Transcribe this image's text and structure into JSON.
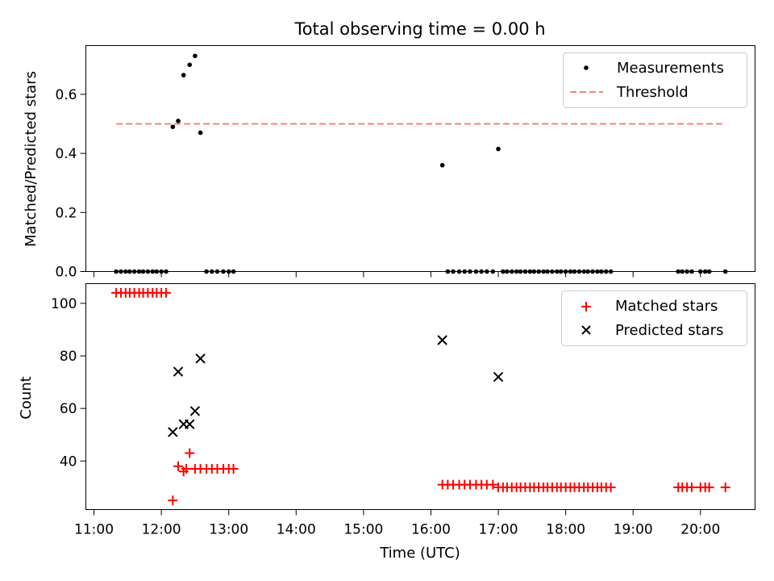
{
  "figure": {
    "title": "Total observing time = 0.00 h",
    "xlabel": "Time (UTC)",
    "x_ticks": [
      "11:00",
      "12:00",
      "13:00",
      "14:00",
      "15:00",
      "16:00",
      "17:00",
      "18:00",
      "19:00",
      "20:00"
    ]
  },
  "chart_data": [
    {
      "type": "scatter",
      "panel": "top",
      "ylabel": "Matched/Predicted stars",
      "y_ticks": [
        "0.0",
        "0.2",
        "0.4",
        "0.6"
      ],
      "xlim_hours": [
        10.88,
        20.81
      ],
      "ylim": [
        0,
        0.765
      ],
      "legend_position": "top-right",
      "series": [
        {
          "name": "Measurements",
          "kind": "points",
          "color": "#000000",
          "x_hours": [
            11.33,
            11.4,
            11.47,
            11.53,
            11.6,
            11.67,
            11.73,
            11.8,
            11.87,
            11.93,
            12.0,
            12.07,
            12.17,
            12.25,
            12.33,
            12.42,
            12.5,
            12.58,
            12.67,
            12.75,
            12.83,
            12.92,
            13.0,
            13.07,
            16.17,
            16.25,
            16.33,
            16.42,
            16.5,
            16.58,
            16.67,
            16.75,
            16.83,
            16.92,
            17.0,
            17.07,
            17.13,
            17.2,
            17.27,
            17.33,
            17.4,
            17.47,
            17.53,
            17.6,
            17.67,
            17.73,
            17.8,
            17.87,
            17.93,
            18.0,
            18.07,
            18.13,
            18.2,
            18.27,
            18.33,
            18.4,
            18.47,
            18.53,
            18.6,
            18.67,
            19.67,
            19.73,
            19.8,
            19.87,
            20.0,
            20.07,
            20.13,
            20.37
          ],
          "y": [
            0,
            0,
            0,
            0,
            0,
            0,
            0,
            0,
            0,
            0,
            0,
            0,
            0.49,
            0.51,
            0.665,
            0.7,
            0.73,
            0.47,
            0,
            0,
            0,
            0,
            0,
            0,
            0.36,
            0,
            0,
            0,
            0,
            0,
            0,
            0,
            0,
            0,
            0.415,
            0,
            0,
            0,
            0,
            0,
            0,
            0,
            0,
            0,
            0,
            0,
            0,
            0,
            0,
            0,
            0,
            0,
            0,
            0,
            0,
            0,
            0,
            0,
            0,
            0,
            0,
            0,
            0,
            0,
            0,
            0,
            0,
            0
          ]
        },
        {
          "name": "Threshold",
          "kind": "dashed-line",
          "color": "#ff7f7f",
          "x_hours": [
            11.33,
            20.37
          ],
          "y": [
            0.5,
            0.5
          ]
        }
      ]
    },
    {
      "type": "scatter",
      "panel": "bottom",
      "ylabel": "Count",
      "y_ticks": [
        "40",
        "60",
        "80",
        "100"
      ],
      "xlim_hours": [
        10.88,
        20.81
      ],
      "ylim": [
        21.5,
        107.5
      ],
      "legend_position": "top-right",
      "series": [
        {
          "name": "Matched stars",
          "marker": "plus",
          "color": "#ff0000",
          "x_hours": [
            11.33,
            11.4,
            11.47,
            11.53,
            11.6,
            11.67,
            11.73,
            11.8,
            11.87,
            11.93,
            12.0,
            12.07,
            12.17,
            12.25,
            12.33,
            12.37,
            12.42,
            12.5,
            12.58,
            12.67,
            12.75,
            12.83,
            12.92,
            13.0,
            13.07,
            16.17,
            16.25,
            16.33,
            16.42,
            16.5,
            16.58,
            16.67,
            16.75,
            16.83,
            16.92,
            17.0,
            17.07,
            17.13,
            17.2,
            17.27,
            17.33,
            17.4,
            17.47,
            17.53,
            17.6,
            17.67,
            17.73,
            17.8,
            17.87,
            17.93,
            18.0,
            18.07,
            18.13,
            18.2,
            18.27,
            18.33,
            18.4,
            18.47,
            18.53,
            18.6,
            18.67,
            19.67,
            19.73,
            19.8,
            19.87,
            20.0,
            20.07,
            20.13,
            20.37
          ],
          "y": [
            104,
            104,
            104,
            104,
            104,
            104,
            104,
            104,
            104,
            104,
            104,
            104,
            25,
            38,
            36,
            37,
            43,
            37,
            37,
            37,
            37,
            37,
            37,
            37,
            37,
            31,
            31,
            31,
            31,
            31,
            31,
            31,
            31,
            31,
            31,
            30,
            30,
            30,
            30,
            30,
            30,
            30,
            30,
            30,
            30,
            30,
            30,
            30,
            30,
            30,
            30,
            30,
            30,
            30,
            30,
            30,
            30,
            30,
            30,
            30,
            30,
            30,
            30,
            30,
            30,
            30,
            30,
            30,
            30
          ]
        },
        {
          "name": "Predicted stars",
          "marker": "x",
          "color": "#000000",
          "x_hours": [
            12.17,
            12.25,
            12.33,
            12.42,
            12.5,
            12.58,
            16.17,
            17.0
          ],
          "y": [
            51,
            74,
            54,
            54,
            59,
            79,
            86,
            72
          ]
        }
      ]
    }
  ]
}
